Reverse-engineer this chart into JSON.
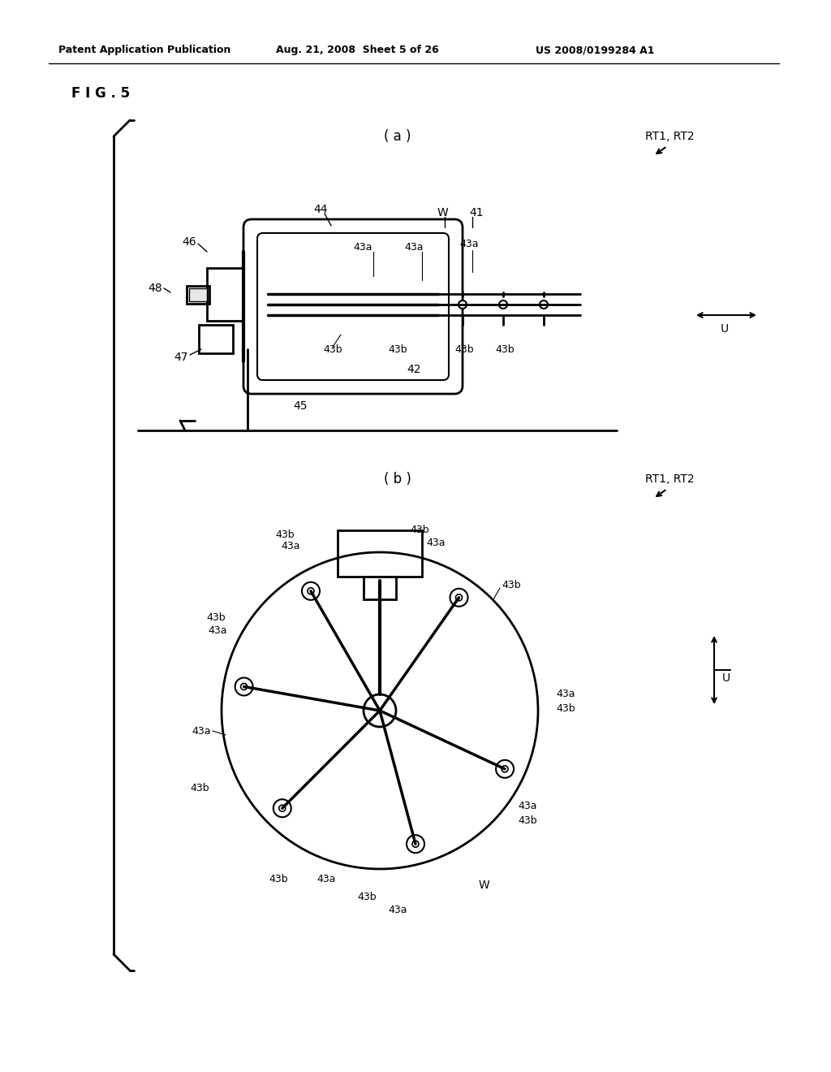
{
  "bg_color": "#ffffff",
  "line_color": "#000000",
  "header_left": "Patent Application Publication",
  "header_mid": "Aug. 21, 2008  Sheet 5 of 26",
  "header_right": "US 2008/0199284 A1",
  "fig_label": "F I G . 5",
  "sub_a_label": "( a )",
  "sub_b_label": "( b )",
  "rt_label": "RT1, RT2",
  "u_label": "U"
}
